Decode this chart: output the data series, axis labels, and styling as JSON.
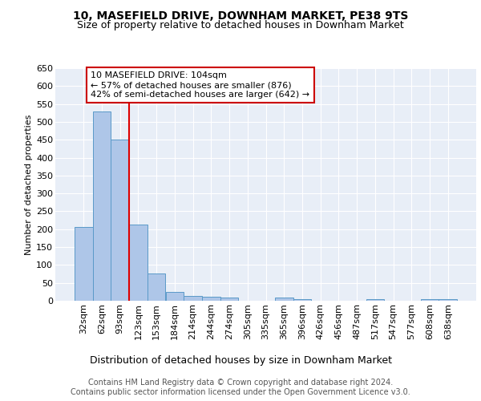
{
  "title1": "10, MASEFIELD DRIVE, DOWNHAM MARKET, PE38 9TS",
  "title2": "Size of property relative to detached houses in Downham Market",
  "xlabel": "Distribution of detached houses by size in Downham Market",
  "ylabel": "Number of detached properties",
  "categories": [
    "32sqm",
    "62sqm",
    "93sqm",
    "123sqm",
    "153sqm",
    "184sqm",
    "214sqm",
    "244sqm",
    "274sqm",
    "305sqm",
    "335sqm",
    "365sqm",
    "396sqm",
    "426sqm",
    "456sqm",
    "487sqm",
    "517sqm",
    "547sqm",
    "577sqm",
    "608sqm",
    "638sqm"
  ],
  "values": [
    207,
    530,
    450,
    212,
    77,
    25,
    14,
    12,
    8,
    0,
    0,
    8,
    5,
    0,
    0,
    0,
    5,
    0,
    0,
    5,
    5
  ],
  "bar_color": "#aec6e8",
  "bar_edge_color": "#5a9ac8",
  "red_line_x": 2.5,
  "annotation_line1": "10 MASEFIELD DRIVE: 104sqm",
  "annotation_line2": "← 57% of detached houses are smaller (876)",
  "annotation_line3": "42% of semi-detached houses are larger (642) →",
  "annotation_box_color": "#ffffff",
  "annotation_box_edge": "#cc0000",
  "footer": "Contains HM Land Registry data © Crown copyright and database right 2024.\nContains public sector information licensed under the Open Government Licence v3.0.",
  "ylim": [
    0,
    650
  ],
  "yticks": [
    0,
    50,
    100,
    150,
    200,
    250,
    300,
    350,
    400,
    450,
    500,
    550,
    600,
    650
  ],
  "background_color": "#e8eef7",
  "grid_color": "#ffffff",
  "title1_fontsize": 10,
  "title2_fontsize": 9,
  "xlabel_fontsize": 9,
  "ylabel_fontsize": 8,
  "tick_fontsize": 8,
  "footer_fontsize": 7,
  "annot_fontsize": 8
}
